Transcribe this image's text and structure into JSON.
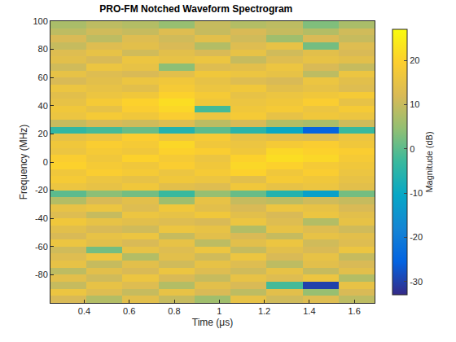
{
  "chart_data": {
    "type": "heatmap",
    "title": "PRO-FM Notched Waveform Spectrogram",
    "x_label": "Time (μs)",
    "y_label": "Frequency (MHz)",
    "colorbar_label": "Magnitude (dB)",
    "x": [
      0.33,
      0.49,
      0.65,
      0.81,
      0.97,
      1.13,
      1.29,
      1.45,
      1.61
    ],
    "y": [
      -97.5,
      -92.5,
      -87.5,
      -82.5,
      -77.5,
      -72.5,
      -67.5,
      -62.5,
      -57.5,
      -52.5,
      -47.5,
      -42.5,
      -37.5,
      -32.5,
      -27.5,
      -22.5,
      -17.5,
      -12.5,
      -7.5,
      -2.5,
      2.5,
      7.5,
      12.5,
      17.5,
      22.5,
      27.5,
      32.5,
      37.5,
      42.5,
      47.5,
      52.5,
      57.5,
      62.5,
      67.5,
      72.5,
      77.5,
      82.5,
      87.5,
      92.5,
      97.5
    ],
    "z": [
      [
        12,
        8,
        14,
        10,
        6,
        15,
        11,
        13,
        9
      ],
      [
        16,
        13,
        10,
        15,
        12,
        9,
        14,
        5,
        12
      ],
      [
        10,
        15,
        13,
        8,
        14,
        12,
        -2,
        -30,
        15
      ],
      [
        14,
        11,
        16,
        12,
        10,
        15,
        13,
        16,
        8
      ],
      [
        9,
        14,
        12,
        16,
        13,
        11,
        15,
        10,
        14
      ],
      [
        15,
        10,
        14,
        11,
        15,
        13,
        9,
        14,
        12
      ],
      [
        13,
        16,
        8,
        14,
        11,
        16,
        12,
        15,
        10
      ],
      [
        11,
        2,
        15,
        13,
        16,
        10,
        14,
        12,
        16
      ],
      [
        16,
        14,
        12,
        15,
        9,
        14,
        16,
        11,
        13
      ],
      [
        12,
        15,
        16,
        10,
        14,
        12,
        10,
        15,
        14
      ],
      [
        14,
        12,
        11,
        16,
        15,
        8,
        15,
        13,
        11
      ],
      [
        17,
        15,
        14,
        13,
        12,
        16,
        13,
        8,
        15
      ],
      [
        13,
        10,
        16,
        15,
        17,
        14,
        12,
        16,
        14
      ],
      [
        15,
        16,
        13,
        17,
        14,
        12,
        16,
        15,
        12
      ],
      [
        8,
        12,
        14,
        6,
        15,
        10,
        9,
        11,
        10
      ],
      [
        0,
        4,
        2,
        -3,
        5,
        1,
        -6,
        -12,
        2
      ],
      [
        16,
        15,
        17,
        14,
        13,
        17,
        15,
        16,
        14
      ],
      [
        18,
        16,
        15,
        17,
        16,
        14,
        18,
        17,
        15
      ],
      [
        17,
        19,
        18,
        16,
        18,
        20,
        17,
        19,
        16
      ],
      [
        20,
        18,
        17,
        19,
        17,
        21,
        20,
        18,
        17
      ],
      [
        19,
        17,
        20,
        18,
        16,
        20,
        22,
        21,
        18
      ],
      [
        16,
        18,
        17,
        20,
        19,
        17,
        21,
        20,
        19
      ],
      [
        17,
        19,
        18,
        21,
        17,
        16,
        18,
        19,
        17
      ],
      [
        15,
        16,
        19,
        17,
        18,
        15,
        14,
        13,
        16
      ],
      [
        -4,
        -2,
        1,
        -6,
        0,
        -5,
        -10,
        -25,
        -3
      ],
      [
        10,
        12,
        11,
        13,
        9,
        12,
        8,
        7,
        11
      ],
      [
        16,
        18,
        17,
        19,
        16,
        18,
        15,
        17,
        16
      ],
      [
        17,
        15,
        19,
        21,
        -2,
        17,
        18,
        16,
        18
      ],
      [
        15,
        18,
        20,
        22,
        17,
        16,
        17,
        19,
        15
      ],
      [
        14,
        16,
        17,
        20,
        18,
        15,
        16,
        17,
        18
      ],
      [
        16,
        15,
        14,
        18,
        16,
        17,
        14,
        15,
        13
      ],
      [
        12,
        14,
        16,
        17,
        15,
        13,
        12,
        16,
        14
      ],
      [
        15,
        13,
        12,
        14,
        17,
        16,
        15,
        9,
        16
      ],
      [
        11,
        16,
        15,
        4,
        13,
        14,
        16,
        12,
        10
      ],
      [
        14,
        12,
        16,
        15,
        16,
        10,
        13,
        15,
        14
      ],
      [
        13,
        15,
        11,
        14,
        12,
        15,
        11,
        14,
        12
      ],
      [
        10,
        13,
        14,
        12,
        8,
        13,
        15,
        2,
        13
      ],
      [
        12,
        9,
        13,
        11,
        14,
        11,
        6,
        12,
        10
      ],
      [
        9,
        11,
        10,
        13,
        10,
        12,
        10,
        8,
        11
      ],
      [
        7,
        9,
        8,
        5,
        10,
        8,
        9,
        3,
        7
      ]
    ],
    "xlim": [
      0.25,
      1.69
    ],
    "ylim": [
      -100,
      100
    ],
    "xticks": [
      0.4,
      0.6,
      0.8,
      1,
      1.2,
      1.4,
      1.6
    ],
    "yticks": [
      -80,
      -60,
      -40,
      -20,
      0,
      20,
      40,
      60,
      80,
      100
    ],
    "zlim": [
      -33,
      27
    ],
    "zticks": [
      -30,
      -20,
      -10,
      0,
      10,
      20
    ]
  }
}
